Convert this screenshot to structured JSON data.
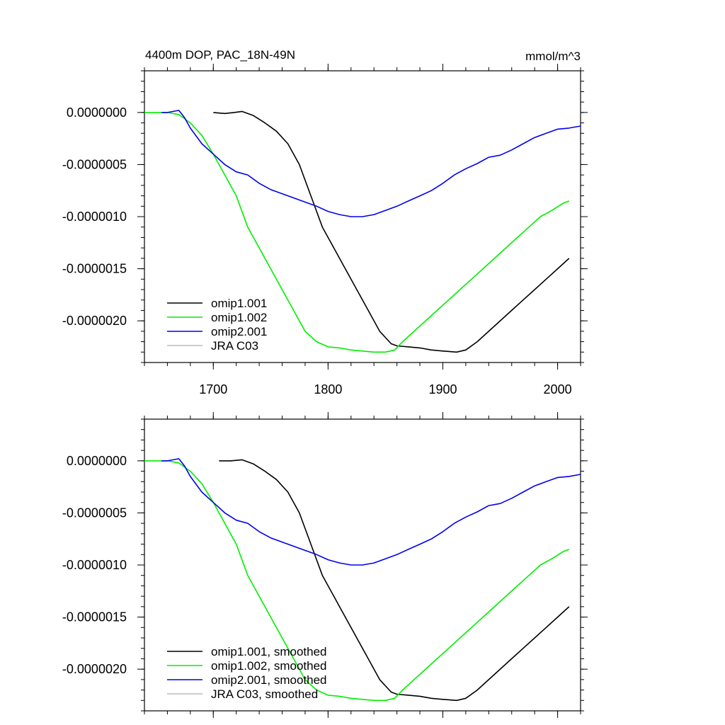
{
  "chart_data": [
    {
      "type": "line",
      "title": "4400m DOP, PAC_18N-49N",
      "units": "mmol/m^3",
      "xlabel": "",
      "ylabel": "",
      "xlim": [
        1640,
        2020
      ],
      "ylim": [
        -2.4e-06,
        4e-07
      ],
      "x_ticks": [
        1700,
        1800,
        1900,
        2000
      ],
      "x_tick_labels": [
        "1700",
        "1800",
        "1900",
        "2000"
      ],
      "y_ticks": [
        0,
        -5e-07,
        -1e-06,
        -1.5e-06,
        -2e-06
      ],
      "y_tick_labels": [
        "0.0000000",
        "-0.0000005",
        "-0.0000010",
        "-0.0000015",
        "-0.0000020"
      ],
      "grid": false,
      "legend_position": "bottom-left",
      "series": [
        {
          "name": "omip1.001",
          "color": "#000000",
          "points": [
            [
              1700,
              0
            ],
            [
              1710,
              -1e-08
            ],
            [
              1718,
              0
            ],
            [
              1725,
              1e-08
            ],
            [
              1735,
              -3e-08
            ],
            [
              1745,
              -1e-07
            ],
            [
              1755,
              -1.8e-07
            ],
            [
              1765,
              -3e-07
            ],
            [
              1775,
              -5e-07
            ],
            [
              1785,
              -8e-07
            ],
            [
              1795,
              -1.1e-06
            ],
            [
              1805,
              -1.3e-06
            ],
            [
              1815,
              -1.5e-06
            ],
            [
              1825,
              -1.7e-06
            ],
            [
              1835,
              -1.9e-06
            ],
            [
              1845,
              -2.1e-06
            ],
            [
              1855,
              -2.22e-06
            ],
            [
              1860,
              -2.24e-06
            ],
            [
              1870,
              -2.25e-06
            ],
            [
              1880,
              -2.26e-06
            ],
            [
              1890,
              -2.28e-06
            ],
            [
              1900,
              -2.29e-06
            ],
            [
              1912,
              -2.3e-06
            ],
            [
              1920,
              -2.28e-06
            ],
            [
              1930,
              -2.2e-06
            ],
            [
              1940,
              -2.1e-06
            ],
            [
              1950,
              -2e-06
            ],
            [
              1960,
              -1.9e-06
            ],
            [
              1970,
              -1.8e-06
            ],
            [
              1980,
              -1.7e-06
            ],
            [
              1990,
              -1.6e-06
            ],
            [
              2000,
              -1.5e-06
            ],
            [
              2010,
              -1.4e-06
            ]
          ]
        },
        {
          "name": "omip1.002",
          "color": "#00ee00",
          "points": [
            [
              1640,
              0
            ],
            [
              1650,
              0
            ],
            [
              1660,
              0
            ],
            [
              1670,
              -2e-08
            ],
            [
              1680,
              -1e-07
            ],
            [
              1690,
              -2.2e-07
            ],
            [
              1700,
              -4e-07
            ],
            [
              1710,
              -6e-07
            ],
            [
              1720,
              -8e-07
            ],
            [
              1730,
              -1.1e-06
            ],
            [
              1740,
              -1.3e-06
            ],
            [
              1750,
              -1.5e-06
            ],
            [
              1760,
              -1.7e-06
            ],
            [
              1770,
              -1.9e-06
            ],
            [
              1780,
              -2.1e-06
            ],
            [
              1790,
              -2.2e-06
            ],
            [
              1800,
              -2.25e-06
            ],
            [
              1810,
              -2.26e-06
            ],
            [
              1820,
              -2.28e-06
            ],
            [
              1830,
              -2.29e-06
            ],
            [
              1840,
              -2.3e-06
            ],
            [
              1850,
              -2.3e-06
            ],
            [
              1858,
              -2.28e-06
            ],
            [
              1865,
              -2.2e-06
            ],
            [
              1875,
              -2.1e-06
            ],
            [
              1885,
              -2e-06
            ],
            [
              1895,
              -1.9e-06
            ],
            [
              1905,
              -1.8e-06
            ],
            [
              1915,
              -1.7e-06
            ],
            [
              1925,
              -1.6e-06
            ],
            [
              1935,
              -1.5e-06
            ],
            [
              1945,
              -1.4e-06
            ],
            [
              1955,
              -1.3e-06
            ],
            [
              1965,
              -1.2e-06
            ],
            [
              1975,
              -1.1e-06
            ],
            [
              1985,
              -1e-06
            ],
            [
              1995,
              -9.4e-07
            ],
            [
              2005,
              -8.7e-07
            ],
            [
              2010,
              -8.5e-07
            ]
          ]
        },
        {
          "name": "omip2.001",
          "color": "#0000ee",
          "points": [
            [
              1655,
              0
            ],
            [
              1660,
              0
            ],
            [
              1665,
              1e-08
            ],
            [
              1670,
              2e-08
            ],
            [
              1675,
              -5e-08
            ],
            [
              1680,
              -1.5e-07
            ],
            [
              1690,
              -3e-07
            ],
            [
              1700,
              -4e-07
            ],
            [
              1710,
              -5e-07
            ],
            [
              1720,
              -5.7e-07
            ],
            [
              1730,
              -6e-07
            ],
            [
              1740,
              -6.8e-07
            ],
            [
              1750,
              -7.4e-07
            ],
            [
              1760,
              -7.8e-07
            ],
            [
              1770,
              -8.2e-07
            ],
            [
              1780,
              -8.6e-07
            ],
            [
              1790,
              -9e-07
            ],
            [
              1800,
              -9.5e-07
            ],
            [
              1810,
              -9.8e-07
            ],
            [
              1820,
              -1e-06
            ],
            [
              1830,
              -1e-06
            ],
            [
              1840,
              -9.8e-07
            ],
            [
              1850,
              -9.4e-07
            ],
            [
              1860,
              -9e-07
            ],
            [
              1870,
              -8.5e-07
            ],
            [
              1880,
              -8e-07
            ],
            [
              1890,
              -7.5e-07
            ],
            [
              1900,
              -6.8e-07
            ],
            [
              1910,
              -6e-07
            ],
            [
              1920,
              -5.4e-07
            ],
            [
              1930,
              -4.9e-07
            ],
            [
              1940,
              -4.3e-07
            ],
            [
              1950,
              -4.1e-07
            ],
            [
              1960,
              -3.6e-07
            ],
            [
              1970,
              -3e-07
            ],
            [
              1980,
              -2.4e-07
            ],
            [
              1990,
              -2e-07
            ],
            [
              2000,
              -1.6e-07
            ],
            [
              2010,
              -1.5e-07
            ],
            [
              2020,
              -1.3e-07
            ]
          ]
        },
        {
          "name": "JRA C03",
          "color": "#bbbbbb",
          "points": []
        }
      ]
    },
    {
      "type": "line",
      "title": "",
      "units": "",
      "xlabel": "",
      "ylabel": "",
      "xlim": [
        1640,
        2020
      ],
      "ylim": [
        -2.4e-06,
        4e-07
      ],
      "x_ticks": [
        1700,
        1800,
        1900,
        2000
      ],
      "x_tick_labels": [],
      "y_ticks": [
        0,
        -5e-07,
        -1e-06,
        -1.5e-06,
        -2e-06
      ],
      "y_tick_labels": [
        "0.0000000",
        "-0.0000005",
        "-0.0000010",
        "-0.0000015",
        "-0.0000020"
      ],
      "grid": false,
      "legend_position": "bottom-left",
      "series": [
        {
          "name": "omip1.001, smoothed",
          "color": "#000000",
          "points": [
            [
              1705,
              0
            ],
            [
              1715,
              0
            ],
            [
              1725,
              1e-08
            ],
            [
              1735,
              -3e-08
            ],
            [
              1745,
              -1e-07
            ],
            [
              1755,
              -1.8e-07
            ],
            [
              1765,
              -3e-07
            ],
            [
              1775,
              -5e-07
            ],
            [
              1785,
              -8e-07
            ],
            [
              1795,
              -1.1e-06
            ],
            [
              1805,
              -1.3e-06
            ],
            [
              1815,
              -1.5e-06
            ],
            [
              1825,
              -1.7e-06
            ],
            [
              1835,
              -1.9e-06
            ],
            [
              1845,
              -2.1e-06
            ],
            [
              1855,
              -2.22e-06
            ],
            [
              1860,
              -2.24e-06
            ],
            [
              1870,
              -2.25e-06
            ],
            [
              1880,
              -2.26e-06
            ],
            [
              1890,
              -2.28e-06
            ],
            [
              1900,
              -2.29e-06
            ],
            [
              1912,
              -2.3e-06
            ],
            [
              1920,
              -2.28e-06
            ],
            [
              1930,
              -2.2e-06
            ],
            [
              1940,
              -2.1e-06
            ],
            [
              1950,
              -2e-06
            ],
            [
              1960,
              -1.9e-06
            ],
            [
              1970,
              -1.8e-06
            ],
            [
              1980,
              -1.7e-06
            ],
            [
              1990,
              -1.6e-06
            ],
            [
              2000,
              -1.5e-06
            ],
            [
              2010,
              -1.4e-06
            ]
          ]
        },
        {
          "name": "omip1.002, smoothed",
          "color": "#00ee00",
          "points": [
            [
              1640,
              0
            ],
            [
              1650,
              0
            ],
            [
              1660,
              0
            ],
            [
              1670,
              -2e-08
            ],
            [
              1680,
              -1e-07
            ],
            [
              1690,
              -2.2e-07
            ],
            [
              1700,
              -4e-07
            ],
            [
              1710,
              -6e-07
            ],
            [
              1720,
              -8e-07
            ],
            [
              1730,
              -1.1e-06
            ],
            [
              1740,
              -1.3e-06
            ],
            [
              1750,
              -1.5e-06
            ],
            [
              1760,
              -1.7e-06
            ],
            [
              1770,
              -1.9e-06
            ],
            [
              1780,
              -2.1e-06
            ],
            [
              1790,
              -2.2e-06
            ],
            [
              1800,
              -2.25e-06
            ],
            [
              1810,
              -2.26e-06
            ],
            [
              1820,
              -2.28e-06
            ],
            [
              1830,
              -2.29e-06
            ],
            [
              1840,
              -2.3e-06
            ],
            [
              1850,
              -2.3e-06
            ],
            [
              1858,
              -2.28e-06
            ],
            [
              1865,
              -2.2e-06
            ],
            [
              1875,
              -2.1e-06
            ],
            [
              1885,
              -2e-06
            ],
            [
              1895,
              -1.9e-06
            ],
            [
              1905,
              -1.8e-06
            ],
            [
              1915,
              -1.7e-06
            ],
            [
              1925,
              -1.6e-06
            ],
            [
              1935,
              -1.5e-06
            ],
            [
              1945,
              -1.4e-06
            ],
            [
              1955,
              -1.3e-06
            ],
            [
              1965,
              -1.2e-06
            ],
            [
              1975,
              -1.1e-06
            ],
            [
              1985,
              -1e-06
            ],
            [
              1995,
              -9.4e-07
            ],
            [
              2005,
              -8.7e-07
            ],
            [
              2010,
              -8.5e-07
            ]
          ]
        },
        {
          "name": "omip2.001, smoothed",
          "color": "#0000ee",
          "points": [
            [
              1655,
              0
            ],
            [
              1660,
              0
            ],
            [
              1665,
              1e-08
            ],
            [
              1670,
              2e-08
            ],
            [
              1675,
              -5e-08
            ],
            [
              1680,
              -1.5e-07
            ],
            [
              1690,
              -3e-07
            ],
            [
              1700,
              -4e-07
            ],
            [
              1710,
              -5e-07
            ],
            [
              1720,
              -5.7e-07
            ],
            [
              1730,
              -6e-07
            ],
            [
              1740,
              -6.8e-07
            ],
            [
              1750,
              -7.4e-07
            ],
            [
              1760,
              -7.8e-07
            ],
            [
              1770,
              -8.2e-07
            ],
            [
              1780,
              -8.6e-07
            ],
            [
              1790,
              -9e-07
            ],
            [
              1800,
              -9.5e-07
            ],
            [
              1810,
              -9.8e-07
            ],
            [
              1820,
              -1e-06
            ],
            [
              1830,
              -1e-06
            ],
            [
              1840,
              -9.8e-07
            ],
            [
              1850,
              -9.4e-07
            ],
            [
              1860,
              -9e-07
            ],
            [
              1870,
              -8.5e-07
            ],
            [
              1880,
              -8e-07
            ],
            [
              1890,
              -7.5e-07
            ],
            [
              1900,
              -6.8e-07
            ],
            [
              1910,
              -6e-07
            ],
            [
              1920,
              -5.4e-07
            ],
            [
              1930,
              -4.9e-07
            ],
            [
              1940,
              -4.3e-07
            ],
            [
              1950,
              -4.1e-07
            ],
            [
              1960,
              -3.6e-07
            ],
            [
              1970,
              -3e-07
            ],
            [
              1980,
              -2.4e-07
            ],
            [
              1990,
              -2e-07
            ],
            [
              2000,
              -1.6e-07
            ],
            [
              2010,
              -1.5e-07
            ],
            [
              2020,
              -1.3e-07
            ]
          ]
        },
        {
          "name": "JRA C03, smoothed",
          "color": "#bbbbbb",
          "points": []
        }
      ]
    }
  ]
}
